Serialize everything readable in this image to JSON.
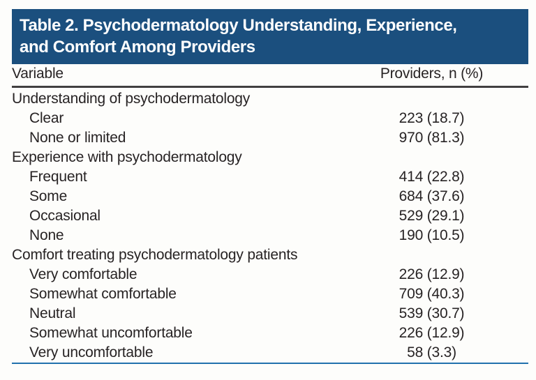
{
  "table": {
    "title_line1": "Table 2. Psychodermatology Understanding, Experience,",
    "title_line2": "and Comfort Among Providers",
    "header": {
      "variable": "Variable",
      "providers": "Providers, n (%)"
    },
    "rows": [
      {
        "type": "category",
        "label": "Understanding of psychodermatology",
        "value": ""
      },
      {
        "type": "item",
        "label": "Clear",
        "value": "223 (18.7)"
      },
      {
        "type": "item",
        "label": "None or limited",
        "value": "970 (81.3)"
      },
      {
        "type": "category",
        "label": "Experience with psychodermatology",
        "value": ""
      },
      {
        "type": "item",
        "label": "Frequent",
        "value": "414 (22.8)"
      },
      {
        "type": "item",
        "label": "Some",
        "value": "684 (37.6)"
      },
      {
        "type": "item",
        "label": "Occasional",
        "value": "529 (29.1)"
      },
      {
        "type": "item",
        "label": "None",
        "value": "190 (10.5)"
      },
      {
        "type": "category",
        "label": "Comfort treating psychodermatology patients",
        "value": ""
      },
      {
        "type": "item",
        "label": "Very comfortable",
        "value": "226 (12.9)"
      },
      {
        "type": "item",
        "label": "Somewhat comfortable",
        "value": "709 (40.3)"
      },
      {
        "type": "item",
        "label": "Neutral",
        "value": "539 (30.7)"
      },
      {
        "type": "item",
        "label": "Somewhat uncomfortable",
        "value": "226 (12.9)"
      },
      {
        "type": "item",
        "label": "Very uncomfortable",
        "value": "58 (3.3)"
      }
    ]
  },
  "colors": {
    "title_bg": "#1b4f7e",
    "title_text": "#ffffff",
    "header_rule": "#413f40",
    "bottom_rule": "#2171ad",
    "body_text": "#272324",
    "page_bg": "#fdfdfb"
  }
}
